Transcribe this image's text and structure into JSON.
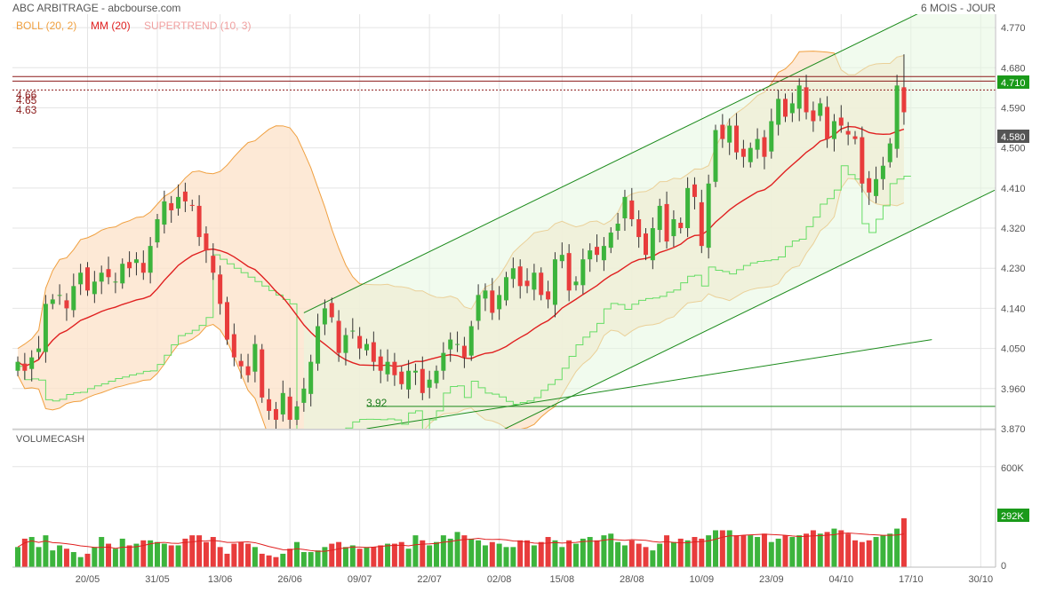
{
  "header": {
    "title": "ABC ARBITRAGE - abcbourse.com",
    "period": "6 MOIS - JOUR"
  },
  "legend": [
    {
      "label": "BOLL (20, 2)",
      "color": "#f0a040"
    },
    {
      "label": "MM (20)",
      "color": "#e02020"
    },
    {
      "label": "SUPERTREND (10, 3)",
      "color": "#f0a0a0"
    }
  ],
  "colors": {
    "up": "#3cb43c",
    "down": "#e83c3c",
    "ma": "#e02020",
    "boll_line": "#f0a040",
    "boll_fill": "#fde4cc",
    "supertrend_up": "#66dd66",
    "supertrend_down": "#f0a0a0",
    "channel": "#1a8a1a",
    "channel_fill": "#e6f7e0",
    "resistance": "#8b1a1a",
    "grid": "#e4e4e4",
    "last_price_bg": "#555555",
    "highlight_bg": "#1a9a1a"
  },
  "levels": {
    "resistance_labels": [
      "4.66",
      "4.65",
      "4.63"
    ],
    "resistance_values": [
      4.66,
      4.65,
      4.63
    ],
    "support_label": "3.92",
    "support_value": 3.92
  },
  "price_badges": {
    "last": "4.580",
    "high": "4.710"
  },
  "volume": {
    "title": "VOLUMECASH",
    "ticks": [
      "600K",
      "0"
    ],
    "badge": "292K"
  },
  "chart_data": {
    "type": "candlestick",
    "y_ticks": [
      "4.770",
      "4.680",
      "4.590",
      "4.500",
      "4.410",
      "4.320",
      "4.230",
      "4.140",
      "4.050",
      "3.960",
      "3.870"
    ],
    "ylim": [
      3.87,
      4.8
    ],
    "x_labels": [
      "20/05",
      "31/05",
      "13/06",
      "26/06",
      "09/07",
      "22/07",
      "02/08",
      "15/08",
      "28/08",
      "10/09",
      "23/09",
      "04/10",
      "17/10",
      "30/10"
    ],
    "close": [
      4.02,
      4.0,
      4.03,
      4.05,
      4.15,
      4.16,
      4.17,
      4.14,
      4.19,
      4.22,
      4.18,
      4.2,
      4.22,
      4.21,
      4.2,
      4.24,
      4.23,
      4.25,
      4.22,
      4.28,
      4.34,
      4.38,
      4.36,
      4.39,
      4.38,
      4.37,
      4.3,
      4.27,
      4.22,
      4.15,
      4.07,
      4.03,
      4.01,
      3.99,
      4.06,
      3.94,
      3.91,
      3.89,
      3.95,
      3.89,
      3.92,
      3.96,
      4.02,
      4.1,
      4.14,
      4.12,
      4.04,
      4.08,
      4.09,
      4.05,
      4.06,
      4.02,
      4.0,
      4.02,
      3.99,
      3.97,
      4.0,
      4.0,
      3.95,
      3.98,
      4.0,
      4.04,
      4.07,
      4.06,
      4.03,
      4.1,
      4.17,
      4.18,
      4.13,
      4.17,
      4.21,
      4.23,
      4.19,
      4.19,
      4.22,
      4.17,
      4.16,
      4.25,
      4.26,
      4.18,
      4.2,
      4.25,
      4.27,
      4.26,
      4.28,
      4.31,
      4.33,
      4.39,
      4.34,
      4.3,
      4.26,
      4.32,
      4.37,
      4.29,
      4.34,
      4.32,
      4.41,
      4.39,
      4.28,
      4.42,
      4.54,
      4.52,
      4.55,
      4.49,
      4.48,
      4.5,
      4.52,
      4.48,
      4.56,
      4.61,
      4.57,
      4.6,
      4.64,
      4.58,
      4.56,
      4.6,
      4.52,
      4.56,
      4.55,
      4.53,
      4.52,
      4.42,
      4.4,
      4.43,
      4.46,
      4.51,
      4.64,
      4.58
    ],
    "volume": [
      120,
      170,
      180,
      120,
      190,
      100,
      130,
      110,
      90,
      60,
      80,
      120,
      180,
      140,
      110,
      170,
      130,
      140,
      160,
      160,
      150,
      140,
      130,
      130,
      170,
      190,
      190,
      150,
      180,
      120,
      80,
      140,
      150,
      140,
      120,
      80,
      70,
      60,
      80,
      110,
      150,
      90,
      90,
      100,
      120,
      140,
      150,
      120,
      130,
      110,
      120,
      120,
      130,
      140,
      140,
      150,
      110,
      190,
      160,
      130,
      150,
      190,
      170,
      210,
      190,
      170,
      160,
      130,
      150,
      140,
      120,
      120,
      160,
      160,
      130,
      150,
      180,
      160,
      120,
      160,
      140,
      170,
      180,
      160,
      190,
      200,
      150,
      130,
      160,
      140,
      120,
      100,
      140,
      190,
      150,
      170,
      160,
      180,
      170,
      190,
      220,
      220,
      220,
      190,
      190,
      190,
      180,
      200,
      150,
      170,
      190,
      180,
      190,
      200,
      220,
      200,
      210,
      230,
      220,
      200,
      160,
      150,
      160,
      180,
      190,
      200,
      230,
      292
    ]
  }
}
